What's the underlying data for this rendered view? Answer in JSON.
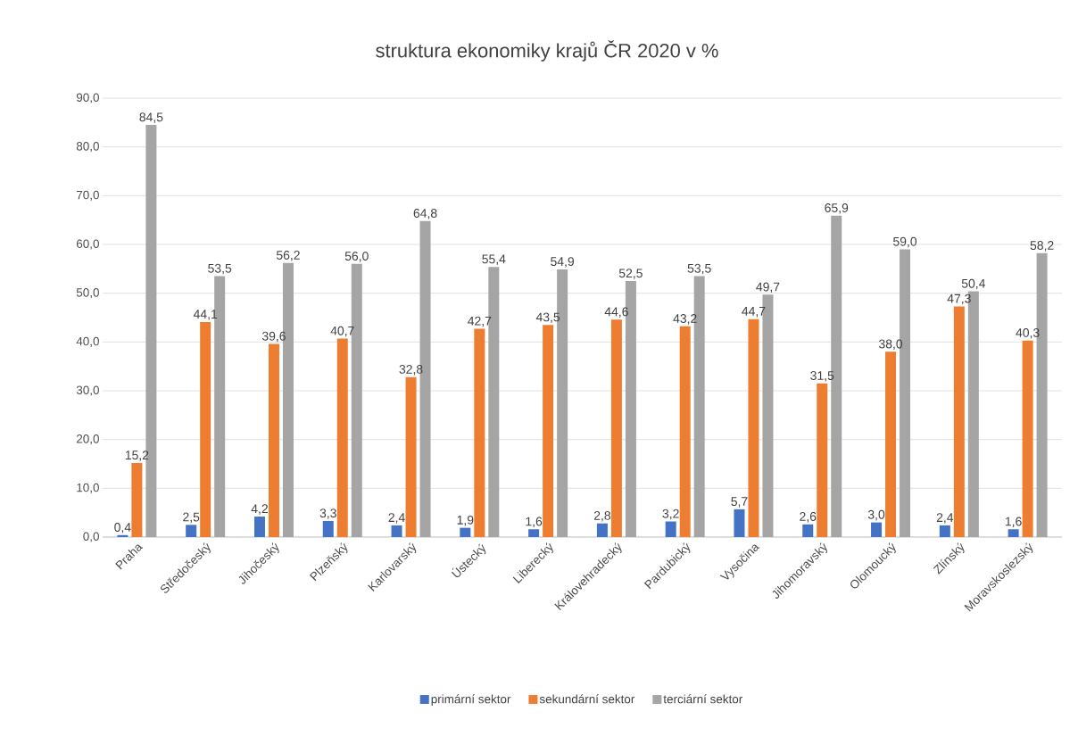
{
  "chart_data": {
    "type": "bar",
    "title": "struktura ekonomiky krajů ČR 2020 v %",
    "categories": [
      "Praha",
      "Středočeský",
      "Jihočeský",
      "Plzeňský",
      "Karlovarský",
      "Ústecký",
      "Liberecký",
      "Královehradecký",
      "Pardubický",
      "Vysočina",
      "Jihomoravský",
      "Olomoucký",
      "Zlínský",
      "Moravskoslezský"
    ],
    "series": [
      {
        "name": "primární sektor",
        "color": "#4472c4",
        "values": [
          0.4,
          2.5,
          4.2,
          3.3,
          2.4,
          1.9,
          1.6,
          2.8,
          3.2,
          5.7,
          2.6,
          3.0,
          2.4,
          1.6
        ],
        "value_labels": [
          "0,4",
          "2,5",
          "4,2",
          "3,3",
          "2,4",
          "1,9",
          "1,6",
          "2,8",
          "3,2",
          "5,7",
          "2,6",
          "3,0",
          "2,4",
          "1,6"
        ]
      },
      {
        "name": "sekundární sektor",
        "color": "#ed7d31",
        "values": [
          15.2,
          44.1,
          39.6,
          40.7,
          32.8,
          42.7,
          43.5,
          44.6,
          43.2,
          44.7,
          31.5,
          38.0,
          47.3,
          40.3
        ],
        "value_labels": [
          "15,2",
          "44,1",
          "39,6",
          "40,7",
          "32,8",
          "42,7",
          "43,5",
          "44,6",
          "43,2",
          "44,7",
          "31,5",
          "38,0",
          "47,3",
          "40,3"
        ]
      },
      {
        "name": "terciární sektor",
        "color": "#a5a5a5",
        "values": [
          84.5,
          53.5,
          56.2,
          56.0,
          64.8,
          55.4,
          54.9,
          52.5,
          53.5,
          49.7,
          65.9,
          59.0,
          50.4,
          58.2
        ],
        "value_labels": [
          "84,5",
          "53,5",
          "56,2",
          "56,0",
          "64,8",
          "55,4",
          "54,9",
          "52,5",
          "53,5",
          "49,7",
          "65,9",
          "59,0",
          "50,4",
          "58,2"
        ]
      }
    ],
    "ylim": [
      0,
      90
    ],
    "yticks": [
      {
        "value": 0,
        "label": "0,0"
      },
      {
        "value": 10,
        "label": "10,0"
      },
      {
        "value": 20,
        "label": "20,0"
      },
      {
        "value": 30,
        "label": "30,0"
      },
      {
        "value": 40,
        "label": "40,0"
      },
      {
        "value": 50,
        "label": "50,0"
      },
      {
        "value": 60,
        "label": "60,0"
      },
      {
        "value": 70,
        "label": "70,0"
      },
      {
        "value": 80,
        "label": "80,0"
      },
      {
        "value": 90,
        "label": "90,0"
      }
    ],
    "grid": "y",
    "legend": "bottom"
  }
}
